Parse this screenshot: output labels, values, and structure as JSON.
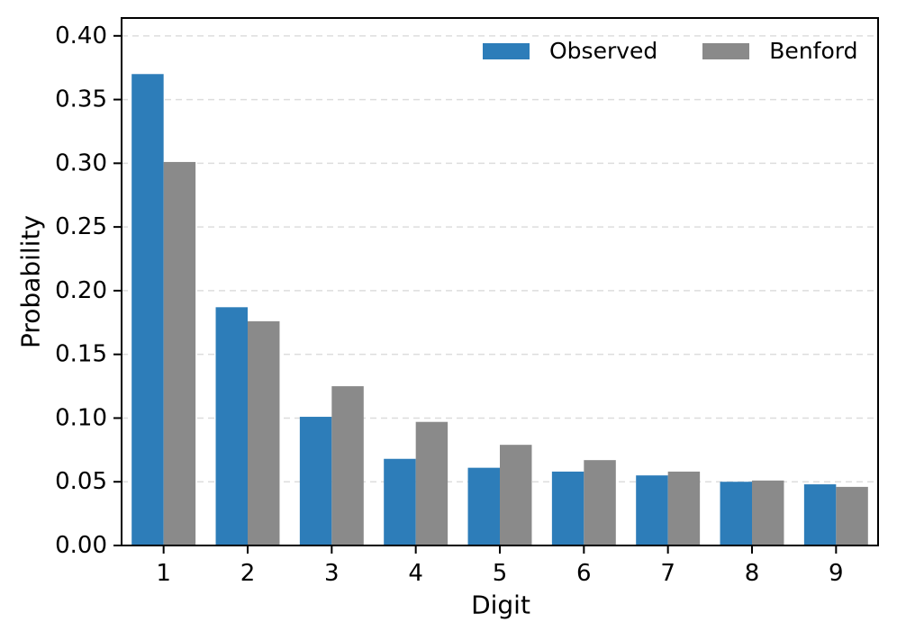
{
  "chart_data": {
    "type": "bar",
    "title": "",
    "xlabel": "Digit",
    "ylabel": "Probability",
    "categories": [
      "1",
      "2",
      "3",
      "4",
      "5",
      "6",
      "7",
      "8",
      "9"
    ],
    "series": [
      {
        "name": "Observed",
        "color": "#2d7db9",
        "values": [
          0.37,
          0.187,
          0.101,
          0.068,
          0.061,
          0.058,
          0.055,
          0.05,
          0.048
        ]
      },
      {
        "name": "Benford",
        "color": "#8a8a8a",
        "values": [
          0.301,
          0.176,
          0.125,
          0.097,
          0.079,
          0.067,
          0.058,
          0.051,
          0.046
        ]
      }
    ],
    "ylim": [
      0,
      0.414
    ],
    "yticks": [
      0,
      0.05,
      0.1,
      0.15,
      0.2,
      0.25,
      0.3,
      0.35,
      0.4
    ],
    "ytick_labels": [
      "0.00",
      "0.05",
      "0.10",
      "0.15",
      "0.20",
      "0.25",
      "0.30",
      "0.35",
      "0.40"
    ],
    "grid": true,
    "grid_color": "#dddddd",
    "axis_color": "#000000",
    "text_color": "#000000",
    "background": "#ffffff",
    "legend_position": "upper right"
  }
}
